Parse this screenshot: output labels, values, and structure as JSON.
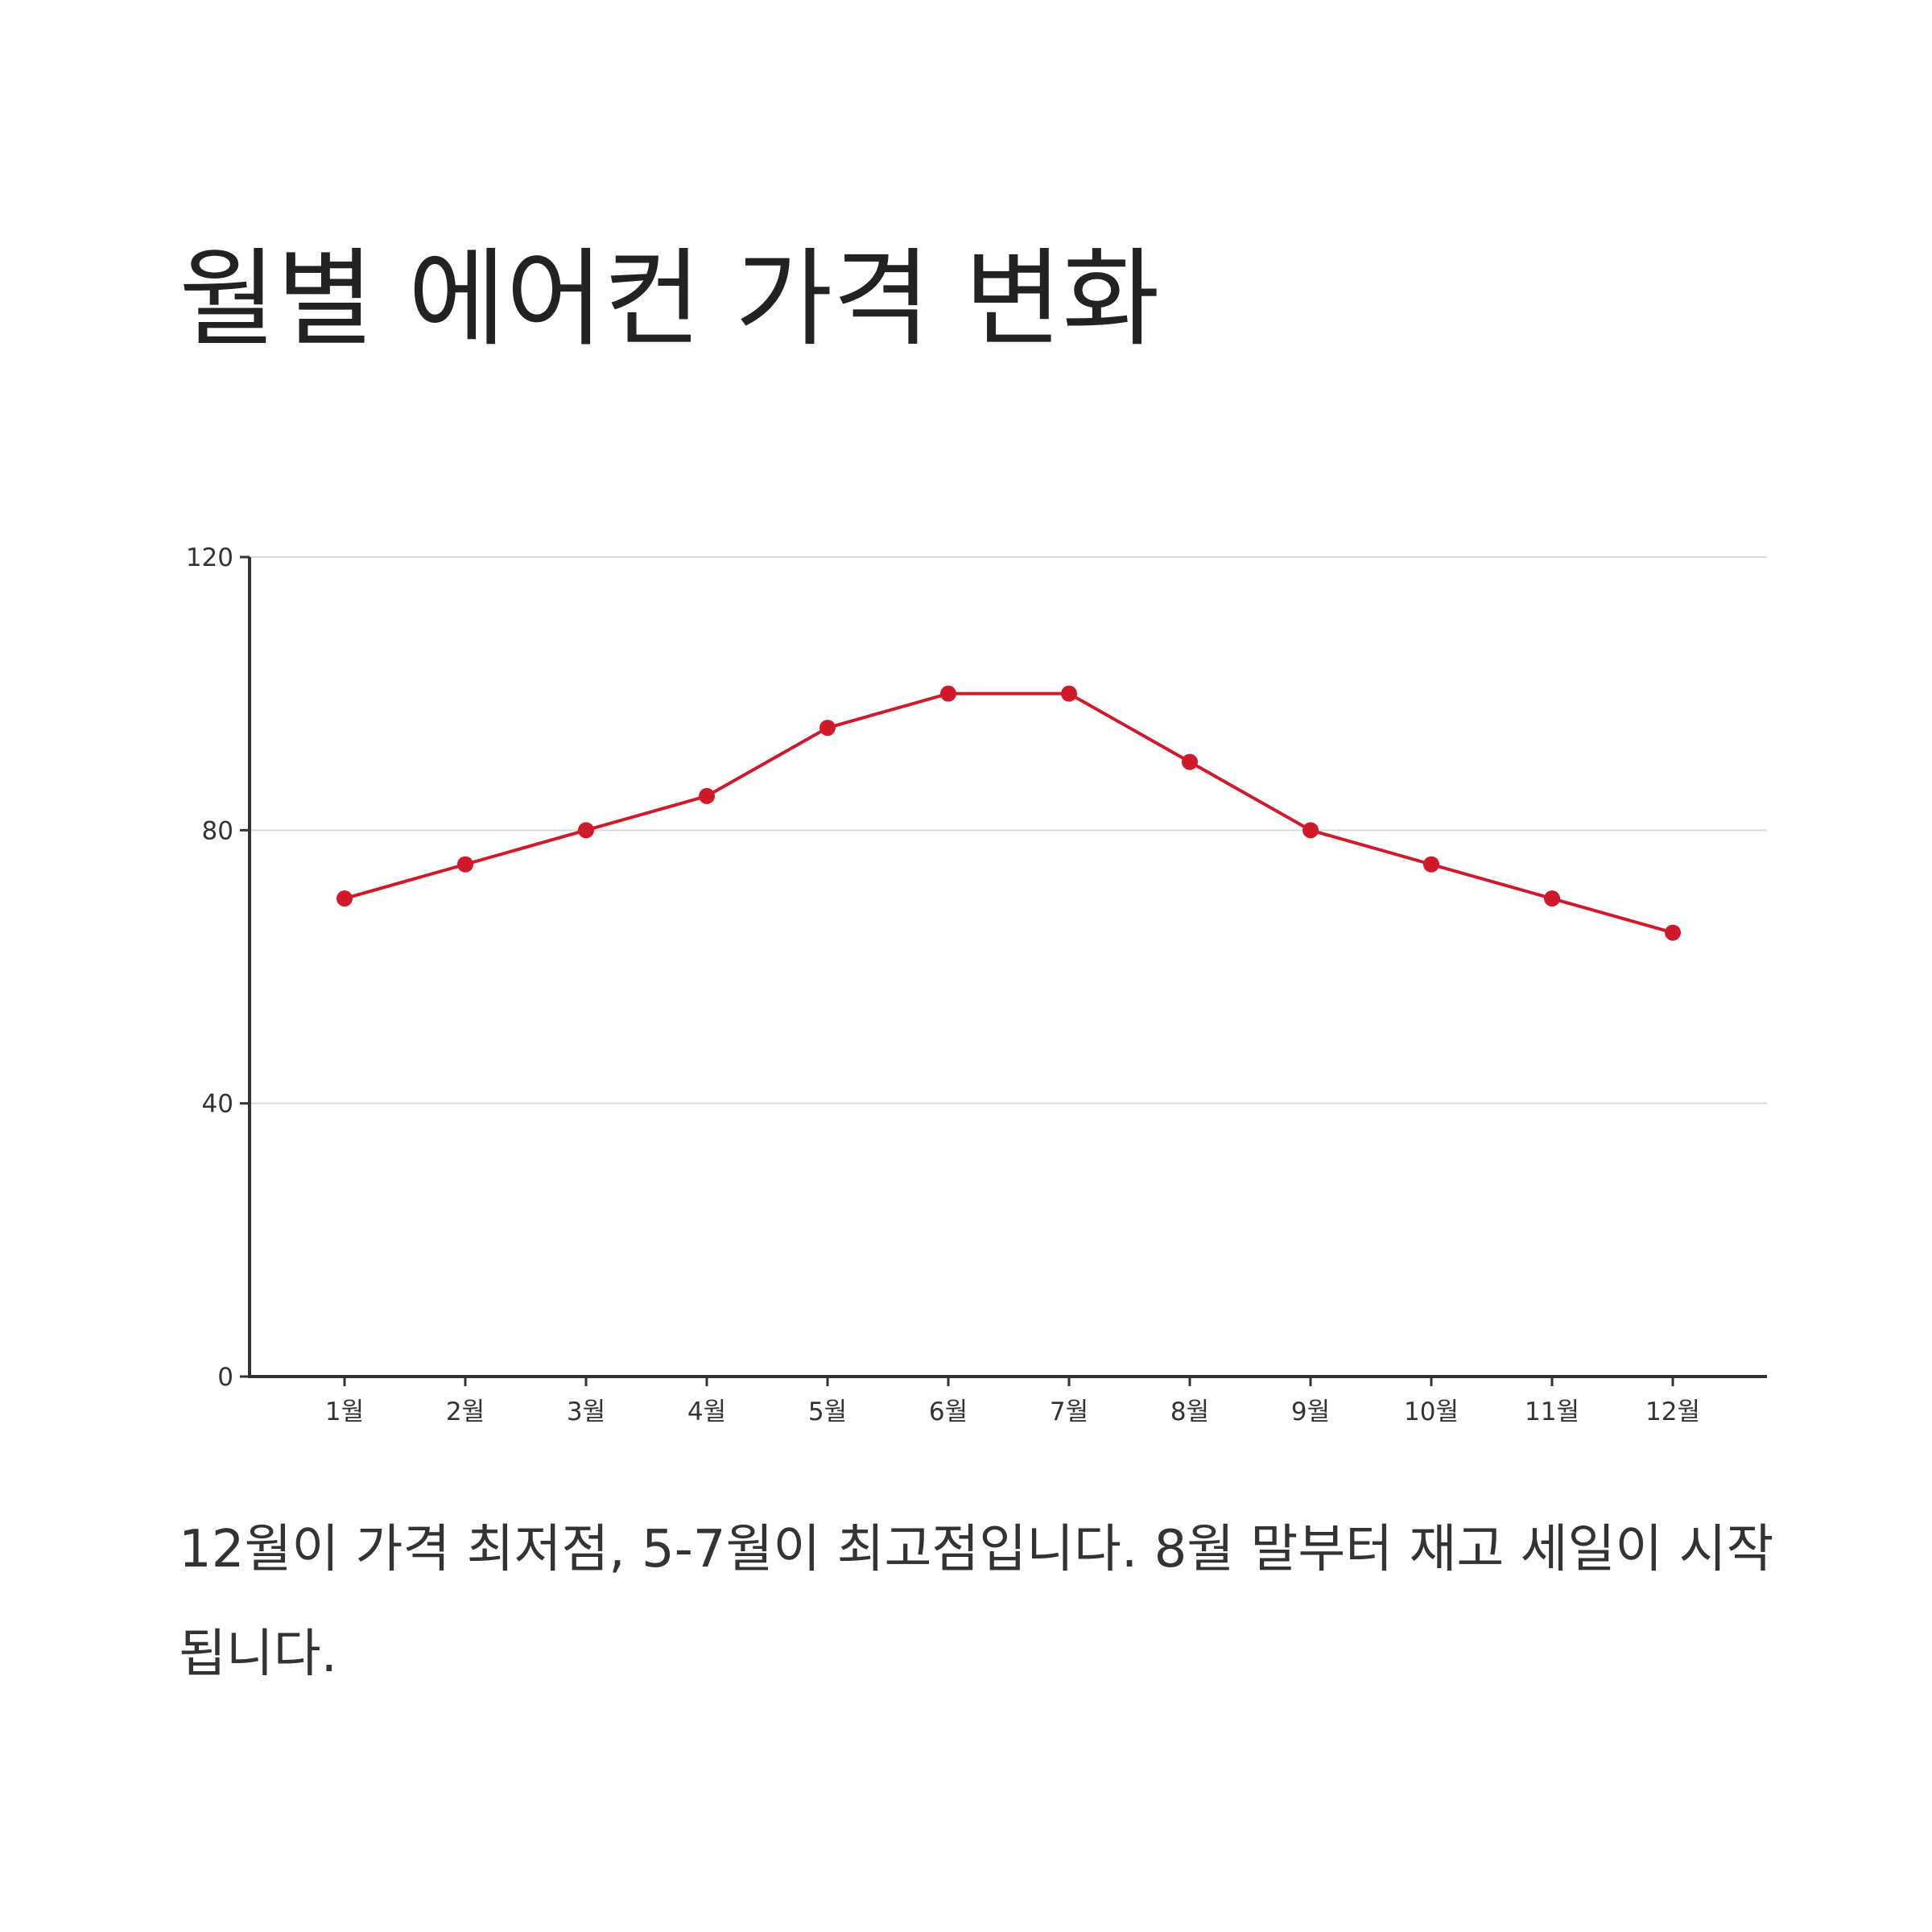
{
  "title": "월별 에어컨 가격 변화",
  "caption": "12월이 가격 최저점, 5-7월이 최고점입니다. 8월 말부터 재고 세일이 시작됩니다.",
  "colors": {
    "line": "#d0192b",
    "axis": "#333333",
    "grid": "#d9d9d9",
    "text": "#222222"
  },
  "chart_data": {
    "type": "line",
    "title": "",
    "xlabel": "",
    "ylabel": "",
    "categories": [
      "1월",
      "2월",
      "3월",
      "4월",
      "5월",
      "6월",
      "7월",
      "8월",
      "9월",
      "10월",
      "11월",
      "12월"
    ],
    "series": [
      {
        "values": [
          70,
          75,
          80,
          85,
          95,
          100,
          100,
          90,
          80,
          75,
          70,
          65
        ]
      }
    ],
    "ylim": [
      0,
      120
    ],
    "yticks": [
      "0",
      "40",
      "80",
      "120"
    ],
    "grid": true,
    "legend": "none"
  }
}
